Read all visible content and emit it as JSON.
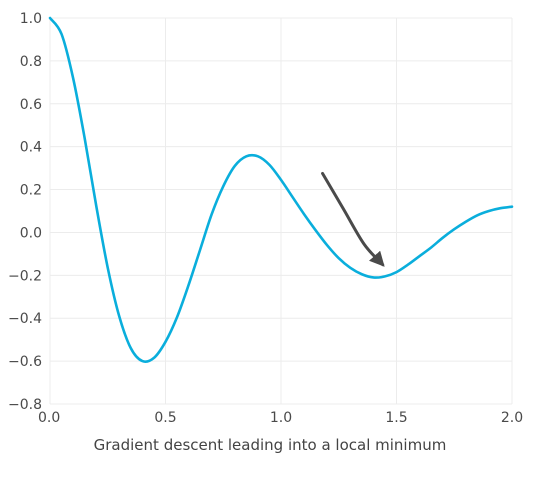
{
  "chart_data": {
    "type": "line",
    "title": "",
    "xlabel": "",
    "ylabel": "",
    "xlim": [
      0.0,
      2.0
    ],
    "ylim": [
      -0.8,
      1.0
    ],
    "x_ticks": [
      0.0,
      0.5,
      1.0,
      1.5,
      2.0
    ],
    "x_tick_labels": [
      "0.0",
      "0.5",
      "1.0",
      "1.5",
      "2.0"
    ],
    "y_ticks": [
      1.0,
      0.8,
      0.6,
      0.4,
      0.2,
      0.0,
      -0.2,
      -0.4,
      -0.6,
      -0.8
    ],
    "y_tick_labels": [
      "1.0",
      "0.8",
      "0.6",
      "0.4",
      "0.2",
      "0.0",
      "−0.2",
      "−0.4",
      "−0.6",
      "−0.8"
    ],
    "grid": true,
    "series": [
      {
        "color": "#0aaedc",
        "x": [
          0.0,
          0.05,
          0.1,
          0.15,
          0.2,
          0.25,
          0.3,
          0.35,
          0.4,
          0.45,
          0.5,
          0.55,
          0.6,
          0.65,
          0.7,
          0.75,
          0.8,
          0.85,
          0.9,
          0.95,
          1.0,
          1.05,
          1.1,
          1.15,
          1.2,
          1.25,
          1.3,
          1.35,
          1.4,
          1.45,
          1.5,
          1.55,
          1.6,
          1.65,
          1.7,
          1.75,
          1.8,
          1.85,
          1.9,
          1.95,
          2.0
        ],
        "y": [
          1.0,
          0.925,
          0.72,
          0.44,
          0.125,
          -0.165,
          -0.392,
          -0.54,
          -0.6,
          -0.585,
          -0.51,
          -0.395,
          -0.245,
          -0.08,
          0.085,
          0.215,
          0.31,
          0.355,
          0.355,
          0.315,
          0.245,
          0.165,
          0.085,
          0.01,
          -0.06,
          -0.12,
          -0.165,
          -0.195,
          -0.21,
          -0.205,
          -0.185,
          -0.15,
          -0.11,
          -0.07,
          -0.025,
          0.015,
          0.05,
          0.08,
          0.1,
          0.113,
          0.12
        ]
      }
    ],
    "annotations": [
      {
        "type": "arrow",
        "color": "#4a4a4a",
        "path": [
          [
            1.18,
            0.275
          ],
          [
            1.27,
            0.11
          ],
          [
            1.36,
            -0.055
          ],
          [
            1.44,
            -0.15
          ]
        ]
      }
    ]
  },
  "caption": "Gradient descent leading into a local minimum"
}
